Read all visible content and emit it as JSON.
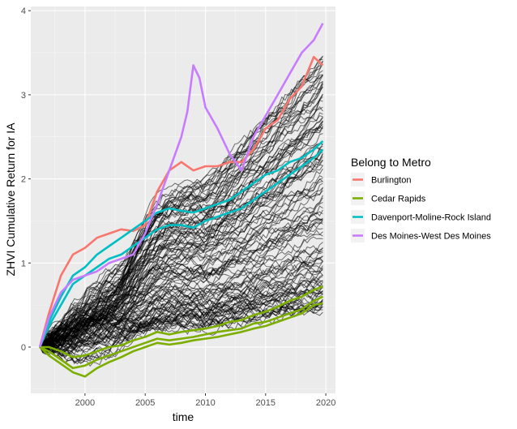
{
  "chart_data": {
    "type": "line",
    "xlabel": "time",
    "ylabel": "ZHVI Cumulative Return for IA",
    "xlim": [
      1995.5,
      2020.8
    ],
    "ylim": [
      -0.55,
      4.05
    ],
    "x_ticks": [
      2000,
      2005,
      2010,
      2015,
      2020
    ],
    "y_ticks": [
      0,
      1,
      2,
      3,
      4
    ],
    "grid": true,
    "legend": {
      "title": "Belong to Metro",
      "placement": "right",
      "entries": [
        {
          "name": "Burlington",
          "color": "#F8766D"
        },
        {
          "name": "Cedar Rapids",
          "color": "#7CAE00"
        },
        {
          "name": "Davenport-Moline-Rock Island",
          "color": "#00BFC4"
        },
        {
          "name": "Des Moines-West Des Moines",
          "color": "#C77CFF"
        }
      ]
    },
    "background_series": {
      "name": "",
      "color": "#000000",
      "x_start": 1996.25,
      "x_end": 2019.75,
      "final_value_range": [
        0.45,
        3.45
      ],
      "description_count": 120
    },
    "series": [
      {
        "name": "Burlington",
        "color": "#F8766D",
        "x": [
          1996.25,
          1997,
          1998,
          1999,
          2000,
          2001,
          2002,
          2003,
          2004,
          2005,
          2006,
          2007,
          2008,
          2009,
          2010,
          2011,
          2012,
          2013,
          2014,
          2015,
          2016,
          2017,
          2018,
          2019,
          2019.75
        ],
        "y": [
          0,
          0.4,
          0.85,
          1.1,
          1.18,
          1.3,
          1.35,
          1.4,
          1.38,
          1.45,
          1.85,
          2.1,
          2.2,
          2.1,
          2.15,
          2.15,
          2.2,
          2.2,
          2.35,
          2.6,
          2.7,
          2.95,
          3.1,
          3.45,
          3.35
        ]
      },
      {
        "name": "Cedar Rapids",
        "color": "#7CAE00",
        "x": [
          1996.25,
          1997,
          1998,
          1999,
          2000,
          2001,
          2002,
          2003,
          2004,
          2005,
          2006,
          2007,
          2008,
          2009,
          2010,
          2011,
          2012,
          2013,
          2014,
          2015,
          2016,
          2017,
          2018,
          2019,
          2019.75
        ],
        "y": [
          0,
          -0.05,
          -0.15,
          -0.25,
          -0.22,
          -0.15,
          -0.1,
          -0.05,
          0,
          0.05,
          0.1,
          0.08,
          0.1,
          0.12,
          0.15,
          0.18,
          0.2,
          0.22,
          0.28,
          0.3,
          0.35,
          0.4,
          0.45,
          0.55,
          0.6
        ]
      },
      {
        "name": "Cedar Rapids",
        "color": "#7CAE00",
        "x": [
          1996.25,
          1997,
          1998,
          1999,
          2000,
          2001,
          2002,
          2003,
          2004,
          2005,
          2006,
          2007,
          2008,
          2009,
          2010,
          2011,
          2012,
          2013,
          2014,
          2015,
          2016,
          2017,
          2018,
          2019,
          2019.75
        ],
        "y": [
          0,
          -0.1,
          -0.2,
          -0.3,
          -0.35,
          -0.25,
          -0.18,
          -0.12,
          -0.05,
          0,
          0.05,
          0.03,
          0.05,
          0.08,
          0.1,
          0.12,
          0.15,
          0.18,
          0.22,
          0.25,
          0.3,
          0.35,
          0.4,
          0.5,
          0.52
        ]
      },
      {
        "name": "Cedar Rapids",
        "color": "#7CAE00",
        "x": [
          1996.25,
          1997,
          1998,
          1999,
          2000,
          2001,
          2002,
          2003,
          2004,
          2005,
          2006,
          2007,
          2008,
          2009,
          2010,
          2011,
          2012,
          2013,
          2014,
          2015,
          2016,
          2017,
          2018,
          2019,
          2019.75
        ],
        "y": [
          0,
          0,
          -0.05,
          -0.12,
          -0.1,
          -0.05,
          0,
          0.02,
          0.08,
          0.12,
          0.18,
          0.15,
          0.18,
          0.2,
          0.22,
          0.25,
          0.3,
          0.32,
          0.38,
          0.42,
          0.48,
          0.55,
          0.6,
          0.68,
          0.72
        ]
      },
      {
        "name": "Davenport-Moline-Rock Island",
        "color": "#00BFC4",
        "x": [
          1996.25,
          1997,
          1998,
          1999,
          2000,
          2001,
          2002,
          2003,
          2004,
          2005,
          2006,
          2007,
          2008,
          2009,
          2010,
          2011,
          2012,
          2013,
          2014,
          2015,
          2016,
          2017,
          2018,
          2019,
          2019.75
        ],
        "y": [
          0,
          0.3,
          0.6,
          0.85,
          0.95,
          1.1,
          1.2,
          1.3,
          1.4,
          1.5,
          1.6,
          1.65,
          1.62,
          1.6,
          1.65,
          1.7,
          1.75,
          1.85,
          1.95,
          2.05,
          2.1,
          2.2,
          2.25,
          2.35,
          2.45
        ]
      },
      {
        "name": "Davenport-Moline-Rock Island",
        "color": "#00BFC4",
        "x": [
          1996.25,
          1997,
          1998,
          1999,
          2000,
          2001,
          2002,
          2003,
          2004,
          2005,
          2006,
          2007,
          2008,
          2009,
          2010,
          2011,
          2012,
          2013,
          2014,
          2015,
          2016,
          2017,
          2018,
          2019,
          2019.75
        ],
        "y": [
          0,
          0.25,
          0.5,
          0.75,
          0.85,
          0.95,
          1.05,
          1.1,
          1.2,
          1.3,
          1.4,
          1.45,
          1.45,
          1.42,
          1.5,
          1.55,
          1.6,
          1.65,
          1.75,
          1.85,
          1.95,
          2.05,
          2.15,
          2.25,
          2.35
        ]
      },
      {
        "name": "Des Moines-West Des Moines",
        "color": "#C77CFF",
        "x": [
          1996.25,
          1997,
          1998,
          1999,
          2000,
          2001,
          2002,
          2003,
          2004,
          2005,
          2006,
          2007,
          2008,
          2008.5,
          2009,
          2009.5,
          2010,
          2011,
          2012,
          2013,
          2014,
          2015,
          2016,
          2017,
          2018,
          2019,
          2019.75
        ],
        "y": [
          0,
          0.35,
          0.65,
          0.8,
          0.85,
          0.9,
          1.0,
          1.05,
          1.1,
          1.35,
          1.7,
          2.1,
          2.5,
          2.8,
          3.35,
          3.2,
          2.85,
          2.6,
          2.3,
          2.1,
          2.5,
          2.75,
          3.0,
          3.25,
          3.5,
          3.65,
          3.85
        ]
      }
    ]
  }
}
